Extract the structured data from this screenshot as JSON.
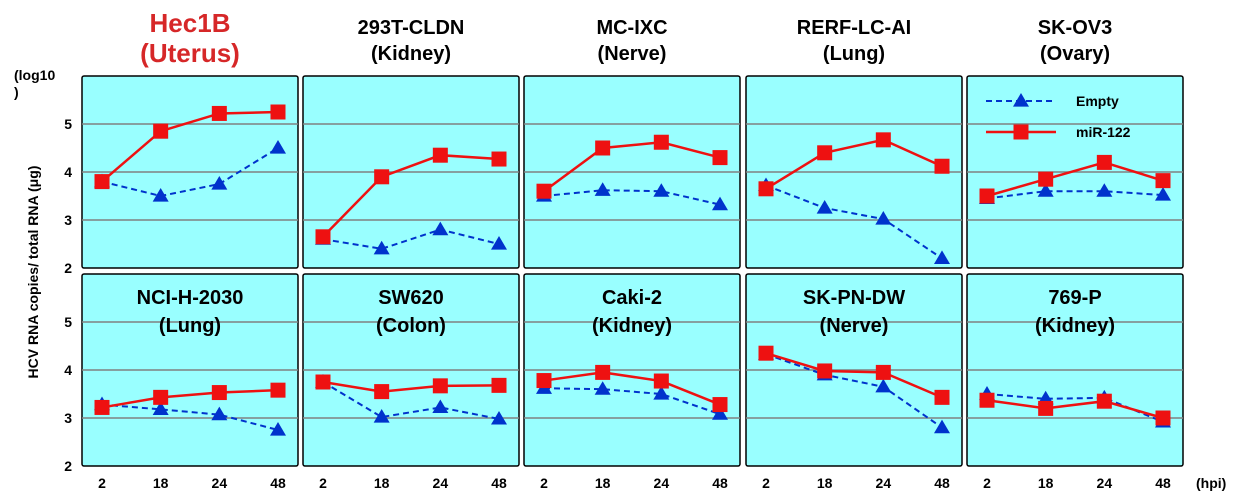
{
  "chart_data": {
    "type": "line",
    "ylabel": "HCV RNA copies/ total RNA (μg)",
    "ylabel_unit": "(log10\n)",
    "xlabel_unit": "(hpi)",
    "x": [
      "2",
      "18",
      "24",
      "48"
    ],
    "ylim": [
      2,
      6
    ],
    "yticks": [
      2,
      3,
      4,
      5
    ],
    "grid": true,
    "colors": {
      "plot_bg": "#99ffff",
      "grid": "#808080",
      "empty": "#0033cc",
      "mir122": "#ee1111",
      "highlight_title": "#d62728"
    },
    "legend": {
      "placement": "top-right",
      "entries": [
        {
          "name": "Empty",
          "style": "dashed-blue-triangle"
        },
        {
          "name": "miR-122",
          "style": "solid-red-square"
        }
      ]
    },
    "panels": [
      {
        "title": [
          "Hec1B",
          "(Uterus)"
        ],
        "highlight": true,
        "series": [
          {
            "name": "Empty",
            "values": [
              3.8,
              3.5,
              3.75,
              4.5
            ]
          },
          {
            "name": "miR-122",
            "values": [
              3.8,
              4.85,
              5.22,
              5.25
            ]
          }
        ]
      },
      {
        "title": [
          "293T-CLDN",
          "(Kidney)"
        ],
        "highlight": false,
        "series": [
          {
            "name": "Empty",
            "values": [
              2.6,
              2.4,
              2.8,
              2.5
            ]
          },
          {
            "name": "miR-122",
            "values": [
              2.65,
              3.9,
              4.35,
              4.27
            ]
          }
        ]
      },
      {
        "title": [
          "MC-IXC",
          "(Nerve)"
        ],
        "highlight": false,
        "series": [
          {
            "name": "Empty",
            "values": [
              3.5,
              3.62,
              3.6,
              3.32
            ]
          },
          {
            "name": "miR-122",
            "values": [
              3.6,
              4.5,
              4.62,
              4.3
            ]
          }
        ]
      },
      {
        "title": [
          "RERF-LC-AI",
          "(Lung)"
        ],
        "highlight": false,
        "series": [
          {
            "name": "Empty",
            "values": [
              3.72,
              3.25,
              3.02,
              2.2
            ]
          },
          {
            "name": "miR-122",
            "values": [
              3.65,
              4.4,
              4.67,
              4.12
            ]
          }
        ]
      },
      {
        "title": [
          "SK-OV3",
          "(Ovary)"
        ],
        "highlight": false,
        "series": [
          {
            "name": "Empty",
            "values": [
              3.45,
              3.6,
              3.6,
              3.52
            ]
          },
          {
            "name": "miR-122",
            "values": [
              3.5,
              3.85,
              4.2,
              3.82
            ]
          }
        ]
      },
      {
        "title": [
          "NCI-H-2030",
          "(Lung)"
        ],
        "highlight": false,
        "series": [
          {
            "name": "Empty",
            "values": [
              3.28,
              3.18,
              3.07,
              2.75
            ]
          },
          {
            "name": "miR-122",
            "values": [
              3.22,
              3.43,
              3.53,
              3.58
            ]
          }
        ]
      },
      {
        "title": [
          "SW620",
          "(Colon)"
        ],
        "highlight": false,
        "series": [
          {
            "name": "Empty",
            "values": [
              3.75,
              3.02,
              3.22,
              2.98
            ]
          },
          {
            "name": "miR-122",
            "values": [
              3.75,
              3.55,
              3.67,
              3.68
            ]
          }
        ]
      },
      {
        "title": [
          "Caki-2",
          "(Kidney)"
        ],
        "highlight": false,
        "series": [
          {
            "name": "Empty",
            "values": [
              3.62,
              3.6,
              3.5,
              3.08
            ]
          },
          {
            "name": "miR-122",
            "values": [
              3.78,
              3.95,
              3.77,
              3.28
            ]
          }
        ]
      },
      {
        "title": [
          "SK-PN-DW",
          "(Nerve)"
        ],
        "highlight": false,
        "series": [
          {
            "name": "Empty",
            "values": [
              4.33,
              3.9,
              3.65,
              2.8
            ]
          },
          {
            "name": "miR-122",
            "values": [
              4.35,
              3.98,
              3.95,
              3.43
            ]
          }
        ]
      },
      {
        "title": [
          "769-P",
          "(Kidney)"
        ],
        "highlight": false,
        "series": [
          {
            "name": "Empty",
            "values": [
              3.5,
              3.4,
              3.42,
              2.92
            ]
          },
          {
            "name": "miR-122",
            "values": [
              3.37,
              3.2,
              3.35,
              3.0
            ]
          }
        ]
      }
    ]
  }
}
